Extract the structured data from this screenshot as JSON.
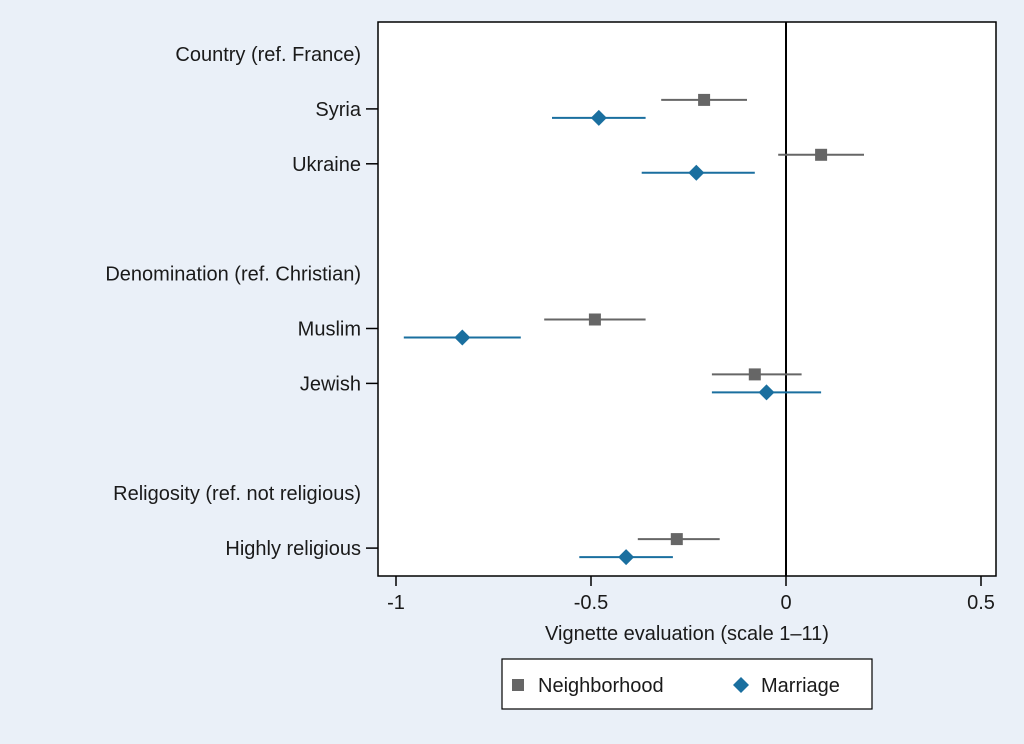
{
  "chart_data": {
    "type": "scatter",
    "subtype": "coefficient-plot-with-confidence-intervals",
    "xlabel": "Vignette evaluation (scale 1–11)",
    "xlim": [
      -1.05,
      0.55
    ],
    "xticks": [
      -1,
      -0.5,
      0,
      0.5
    ],
    "xtick_labels": [
      "-1",
      "-0.5",
      "0",
      "0.5"
    ],
    "reference_line": 0,
    "grid": false,
    "legend_position": "bottom-center",
    "rows": [
      {
        "label": "Country (ref. France)",
        "heading": true
      },
      {
        "label": "Syria",
        "heading": false
      },
      {
        "label": "Ukraine",
        "heading": false
      },
      {
        "label": "",
        "heading": true
      },
      {
        "label": "Denomination (ref. Christian)",
        "heading": true
      },
      {
        "label": "Muslim",
        "heading": false
      },
      {
        "label": "Jewish",
        "heading": false
      },
      {
        "label": "",
        "heading": true
      },
      {
        "label": "Religosity (ref. not religious)",
        "heading": true
      },
      {
        "label": "Highly religious",
        "heading": false
      }
    ],
    "series": [
      {
        "name": "Neighborhood",
        "marker": "square",
        "color": "#666666",
        "points": [
          {
            "category": "Syria",
            "estimate": -0.21,
            "ci_low": -0.32,
            "ci_high": -0.1
          },
          {
            "category": "Ukraine",
            "estimate": 0.09,
            "ci_low": -0.02,
            "ci_high": 0.2
          },
          {
            "category": "Muslim",
            "estimate": -0.49,
            "ci_low": -0.62,
            "ci_high": -0.36
          },
          {
            "category": "Jewish",
            "estimate": -0.08,
            "ci_low": -0.19,
            "ci_high": 0.04
          },
          {
            "category": "Highly religious",
            "estimate": -0.28,
            "ci_low": -0.38,
            "ci_high": -0.17
          }
        ]
      },
      {
        "name": "Marriage",
        "marker": "diamond",
        "color": "#1a6f9f",
        "points": [
          {
            "category": "Syria",
            "estimate": -0.48,
            "ci_low": -0.6,
            "ci_high": -0.36
          },
          {
            "category": "Ukraine",
            "estimate": -0.23,
            "ci_low": -0.37,
            "ci_high": -0.08
          },
          {
            "category": "Muslim",
            "estimate": -0.83,
            "ci_low": -0.98,
            "ci_high": -0.68
          },
          {
            "category": "Jewish",
            "estimate": -0.05,
            "ci_low": -0.19,
            "ci_high": 0.09
          },
          {
            "category": "Highly religious",
            "estimate": -0.41,
            "ci_low": -0.53,
            "ci_high": -0.29
          }
        ]
      }
    ]
  }
}
